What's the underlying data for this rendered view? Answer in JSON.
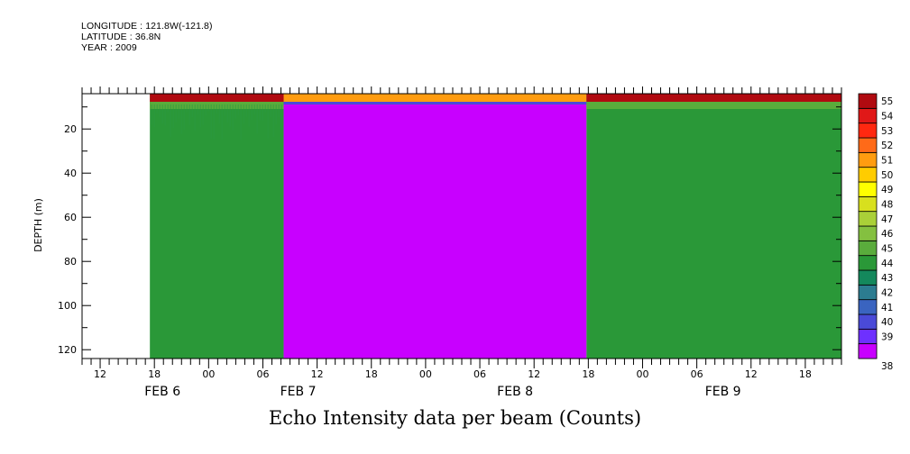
{
  "header": {
    "longitude": "LONGITUDE : 121.8W(-121.8)",
    "latitude": "LATITUDE : 36.8N",
    "year": "YEAR : 2009"
  },
  "chart_data": {
    "type": "heatmap",
    "title": "Echo Intensity data per beam (Counts)",
    "xlabel": "",
    "ylabel": "DEPTH (m)",
    "x_range_hours": [
      -14,
      70
    ],
    "x_reference": "FEB 6 00",
    "ylim": [
      4,
      124
    ],
    "y_ticks": [
      20,
      40,
      60,
      80,
      100,
      120
    ],
    "x_tick_labels": [
      "12",
      "18",
      "00",
      "06",
      "12",
      "18",
      "00",
      "06",
      "12",
      "18",
      "00",
      "06",
      "12",
      "18"
    ],
    "x_tick_hours": [
      -12,
      -6,
      0,
      6,
      12,
      18,
      24,
      30,
      36,
      42,
      48,
      54,
      60,
      66
    ],
    "date_labels": [
      {
        "label": "FEB  6",
        "hour": -6
      },
      {
        "label": "FEB  7",
        "hour": 9
      },
      {
        "label": "FEB  8",
        "hour": 33
      },
      {
        "label": "FEB  9",
        "hour": 56
      }
    ],
    "colorbar": {
      "levels": [
        38,
        39,
        40,
        41,
        42,
        43,
        44,
        45,
        46,
        47,
        48,
        49,
        50,
        51,
        52,
        53,
        54,
        55
      ],
      "colors": [
        "#c800ff",
        "#a000ff",
        "#6e30ff",
        "#4a4ad8",
        "#3a64c0",
        "#2c7c90",
        "#14885c",
        "#2a9838",
        "#5aac3c",
        "#84c040",
        "#aad038",
        "#d8e01e",
        "#ffff00",
        "#ffcc00",
        "#ff9c10",
        "#ff6a18",
        "#ff2810",
        "#e01818",
        "#b00a10"
      ]
    },
    "blocks": [
      {
        "name": "no data",
        "start_hour": -14,
        "end_hour": -6.5,
        "surface_value": null,
        "value": null
      },
      {
        "name": "segment-1",
        "start_hour": -6.5,
        "end_hour": 8.3,
        "surface_value": 55,
        "value": 44
      },
      {
        "name": "segment-2",
        "start_hour": 8.3,
        "end_hour": 41.8,
        "surface_value": 51,
        "value": 38
      },
      {
        "name": "segment-3",
        "start_hour": 41.8,
        "end_hour": 70,
        "surface_value": 55,
        "value": 44
      }
    ]
  }
}
